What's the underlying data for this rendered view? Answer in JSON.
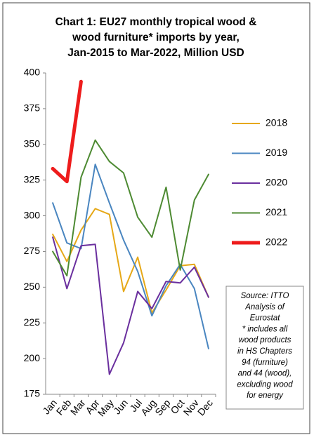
{
  "chart_data": {
    "type": "line",
    "title": [
      "Chart 1: EU27 monthly tropical wood &",
      "wood furniture* imports by year,",
      "Jan-2015 to Mar-2022, Million USD"
    ],
    "categories": [
      "Jan",
      "Feb",
      "Mar",
      "Apr",
      "May",
      "Jun",
      "Jul",
      "Aug",
      "Sep",
      "Oct",
      "Nov",
      "Dec"
    ],
    "series": [
      {
        "name": "2018",
        "color": "#e6a817",
        "width": 2,
        "values": [
          287,
          268,
          290,
          305,
          301,
          247,
          271,
          232,
          248,
          265,
          266,
          243
        ]
      },
      {
        "name": "2019",
        "color": "#4a86c0",
        "width": 2,
        "values": [
          309,
          281,
          277,
          336,
          309,
          283,
          261,
          230,
          251,
          266,
          249,
          207
        ]
      },
      {
        "name": "2020",
        "color": "#6a2f9e",
        "width": 2,
        "values": [
          285,
          249,
          279,
          280,
          189,
          211,
          247,
          235,
          254,
          253,
          264,
          243
        ]
      },
      {
        "name": "2021",
        "color": "#4d8a32",
        "width": 2,
        "values": [
          275,
          258,
          327,
          353,
          338,
          330,
          299,
          285,
          320,
          262,
          311,
          329
        ]
      },
      {
        "name": "2022",
        "color": "#ee1c1c",
        "width": 5,
        "values": [
          333,
          324,
          394,
          null,
          null,
          null,
          null,
          null,
          null,
          null,
          null,
          null
        ]
      }
    ],
    "ylim": [
      175,
      400
    ],
    "yticks": [
      175,
      200,
      225,
      250,
      275,
      300,
      325,
      350,
      375,
      400
    ],
    "legend": "right",
    "annotation": [
      "Source: ITTO",
      "Analysis of",
      "Eurostat",
      "* includes all",
      "wood products",
      "in HS Chapters",
      "94 (furniture)",
      "and 44 (wood),",
      "excluding wood",
      "for energy"
    ]
  }
}
